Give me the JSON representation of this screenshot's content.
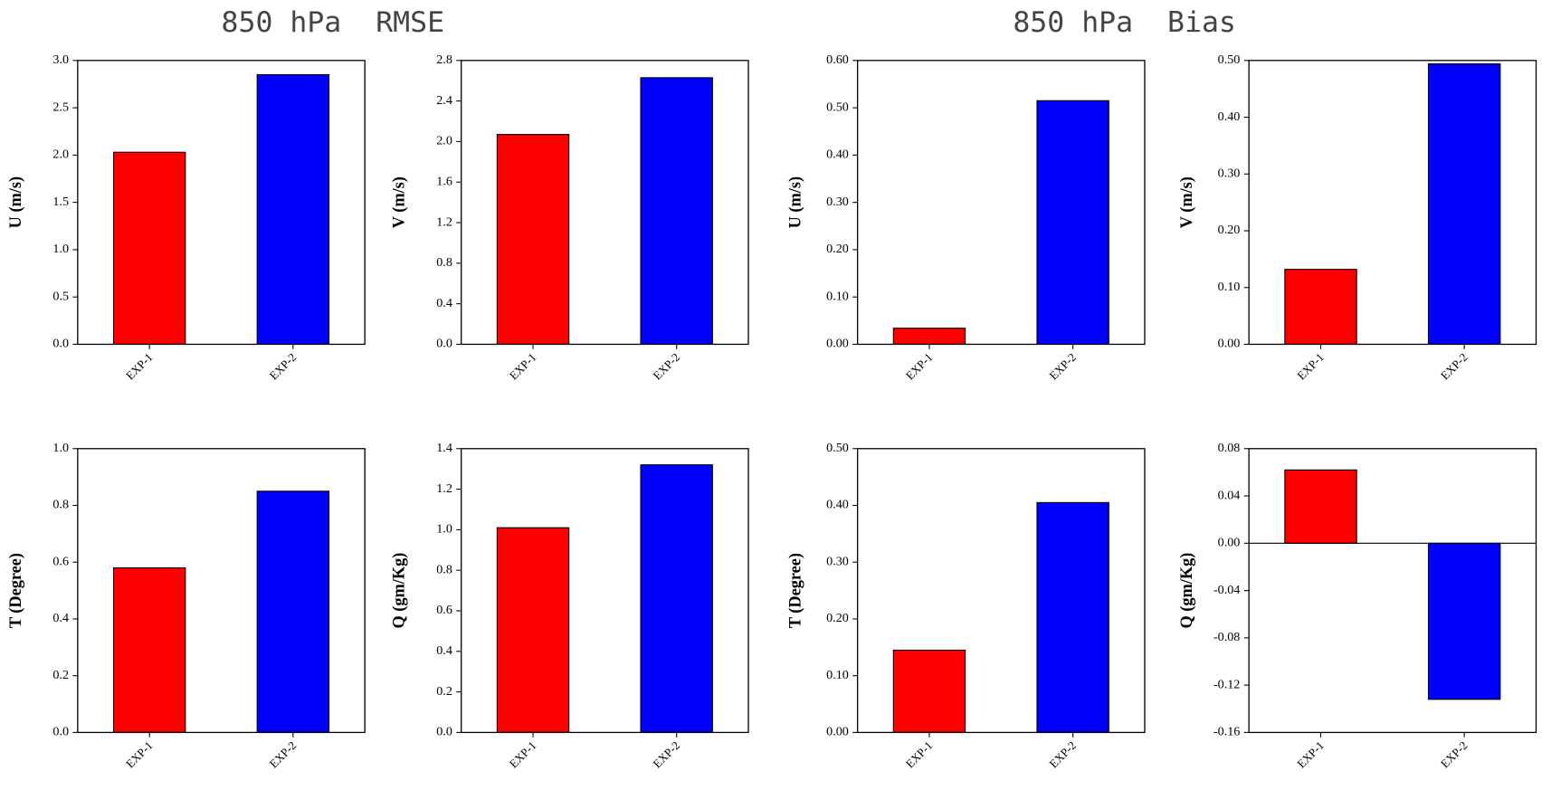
{
  "titles": [
    "850 hPa  RMSE",
    "850 hPa  Bias"
  ],
  "chart_data": [
    {
      "type": "bar",
      "ylabel": "U (m/s)",
      "categories": [
        "EXP-1",
        "EXP-2"
      ],
      "values": [
        2.03,
        2.85
      ],
      "colors": [
        "#ff0000",
        "#0000ff"
      ],
      "ylim": [
        0,
        3
      ],
      "yticks": [
        {
          "value": 0,
          "label": "0.0"
        },
        0.5,
        {
          "value": 1,
          "label": "1.0"
        },
        1.5,
        {
          "value": 2,
          "label": "2.0"
        },
        2.5,
        {
          "value": 3,
          "label": "3.0"
        }
      ]
    },
    {
      "type": "bar",
      "ylabel": "V (m/s)",
      "categories": [
        "EXP-1",
        "EXP-2"
      ],
      "values": [
        2.07,
        2.63
      ],
      "colors": [
        "#ff0000",
        "#0000ff"
      ],
      "ylim": [
        0,
        2.8
      ],
      "yticks": [
        {
          "value": 0,
          "label": "0.0"
        },
        0.4,
        0.8,
        1.2,
        1.6,
        {
          "value": 2,
          "label": "2.0"
        },
        2.4,
        2.8
      ]
    },
    {
      "type": "bar",
      "ylabel": "U (m/s)",
      "categories": [
        "EXP-1",
        "EXP-2"
      ],
      "values": [
        0.034,
        0.515
      ],
      "colors": [
        "#ff0000",
        "#0000ff"
      ],
      "ylim": [
        0,
        0.6
      ],
      "yticks": [
        {
          "value": 0,
          "label": "0.00"
        },
        {
          "value": 0.1,
          "label": "0.10"
        },
        {
          "value": 0.2,
          "label": "0.20"
        },
        {
          "value": 0.3,
          "label": "0.30"
        },
        {
          "value": 0.4,
          "label": "0.40"
        },
        {
          "value": 0.5,
          "label": "0.50"
        },
        {
          "value": 0.6,
          "label": "0.60"
        }
      ]
    },
    {
      "type": "bar",
      "ylabel": "V (m/s)",
      "categories": [
        "EXP-1",
        "EXP-2"
      ],
      "values": [
        0.132,
        0.494
      ],
      "colors": [
        "#ff0000",
        "#0000ff"
      ],
      "ylim": [
        0,
        0.5
      ],
      "yticks": [
        {
          "value": 0,
          "label": "0.00"
        },
        {
          "value": 0.1,
          "label": "0.10"
        },
        {
          "value": 0.2,
          "label": "0.20"
        },
        {
          "value": 0.3,
          "label": "0.30"
        },
        {
          "value": 0.4,
          "label": "0.40"
        },
        {
          "value": 0.5,
          "label": "0.50"
        }
      ]
    },
    {
      "type": "bar",
      "ylabel": "T (Degree)",
      "categories": [
        "EXP-1",
        "EXP-2"
      ],
      "values": [
        0.58,
        0.85
      ],
      "colors": [
        "#ff0000",
        "#0000ff"
      ],
      "ylim": [
        0,
        1
      ],
      "yticks": [
        {
          "value": 0,
          "label": "0.0"
        },
        0.2,
        0.4,
        0.6,
        0.8,
        {
          "value": 1,
          "label": "1.0"
        }
      ]
    },
    {
      "type": "bar",
      "ylabel": "Q (gm/Kg)",
      "categories": [
        "EXP-1",
        "EXP-2"
      ],
      "values": [
        1.01,
        1.32
      ],
      "colors": [
        "#ff0000",
        "#0000ff"
      ],
      "ylim": [
        0,
        1.4
      ],
      "yticks": [
        {
          "value": 0,
          "label": "0.0"
        },
        0.2,
        0.4,
        0.6,
        0.8,
        {
          "value": 1,
          "label": "1.0"
        },
        1.2,
        1.4
      ]
    },
    {
      "type": "bar",
      "ylabel": "T (Degree)",
      "categories": [
        "EXP-1",
        "EXP-2"
      ],
      "values": [
        0.145,
        0.405
      ],
      "colors": [
        "#ff0000",
        "#0000ff"
      ],
      "ylim": [
        0,
        0.5
      ],
      "yticks": [
        {
          "value": 0,
          "label": "0.00"
        },
        {
          "value": 0.1,
          "label": "0.10"
        },
        {
          "value": 0.2,
          "label": "0.20"
        },
        {
          "value": 0.3,
          "label": "0.30"
        },
        {
          "value": 0.4,
          "label": "0.40"
        },
        {
          "value": 0.5,
          "label": "0.50"
        }
      ]
    },
    {
      "type": "bar",
      "ylabel": "Q (gm/Kg)",
      "categories": [
        "EXP-1",
        "EXP-2"
      ],
      "values": [
        0.062,
        -0.132
      ],
      "colors": [
        "#ff0000",
        "#0000ff"
      ],
      "ylim": [
        -0.16,
        0.08
      ],
      "yticks": [
        -0.16,
        -0.12,
        -0.08,
        -0.04,
        {
          "value": 0,
          "label": "0.00"
        },
        0.04,
        0.08
      ]
    }
  ]
}
